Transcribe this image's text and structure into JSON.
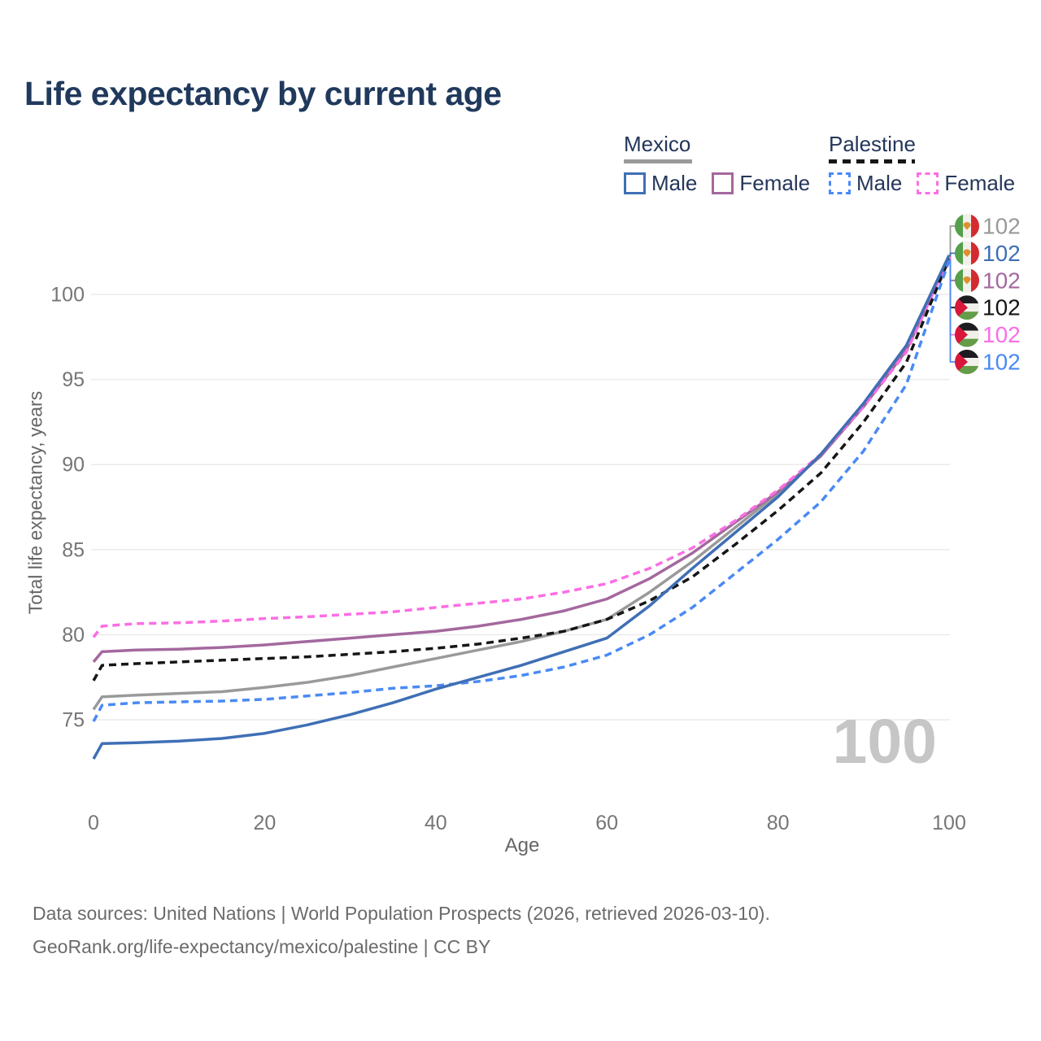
{
  "title": "Life expectancy by current age",
  "watermark": "100",
  "source": {
    "line1": "Data sources: United Nations | World Population Prospects (2026, retrieved 2026-03-10).",
    "line2": "GeoRank.org/life-expectancy/mexico/palestine | CC BY"
  },
  "legend": {
    "groups": [
      {
        "label": "Mexico",
        "line_style": "solid",
        "underline_color": "#9a9a9a",
        "items": [
          {
            "label": "Male",
            "color": "#3f6fb5"
          },
          {
            "label": "Female",
            "color": "#a4689e"
          }
        ]
      },
      {
        "label": "Palestine",
        "line_style": "dashed",
        "underline_color": "#161616",
        "items": [
          {
            "label": "Male",
            "color": "#4a8af4"
          },
          {
            "label": "Female",
            "color": "#fb6ee4"
          }
        ]
      }
    ]
  },
  "chart_data": {
    "type": "line",
    "title": "Life expectancy by current age",
    "xlabel": "Age",
    "ylabel": "Total life expectancy, years",
    "x_ticks": [
      0,
      20,
      40,
      60,
      80,
      100
    ],
    "y_ticks": [
      75,
      80,
      85,
      90,
      95,
      100
    ],
    "xlim": [
      0,
      100
    ],
    "ylim": [
      72,
      103
    ],
    "grid": "horizontal",
    "legend_position": "top-right",
    "x": [
      0,
      1,
      5,
      10,
      15,
      20,
      25,
      30,
      35,
      40,
      45,
      50,
      55,
      60,
      65,
      70,
      75,
      80,
      85,
      90,
      95,
      100
    ],
    "series": [
      {
        "key": "mexico-both",
        "name": "Mexico Both sexes",
        "country": "Mexico",
        "sex": "Both",
        "color": "#9a9a9a",
        "dash": false,
        "values": [
          75.6,
          76.35,
          76.45,
          76.55,
          76.65,
          76.9,
          77.2,
          77.6,
          78.1,
          78.6,
          79.1,
          79.6,
          80.2,
          80.9,
          82.5,
          84.3,
          86.3,
          88.3,
          90.5,
          93.5,
          96.8,
          102.25
        ]
      },
      {
        "key": "mexico-female",
        "name": "Mexico Female",
        "country": "Mexico",
        "sex": "Female",
        "color": "#a4689e",
        "dash": false,
        "values": [
          78.4,
          79.0,
          79.1,
          79.15,
          79.25,
          79.4,
          79.6,
          79.8,
          80.0,
          80.2,
          80.5,
          80.9,
          81.4,
          82.1,
          83.3,
          84.8,
          86.6,
          88.4,
          90.5,
          93.4,
          96.7,
          102.2
        ]
      },
      {
        "key": "palestine-female",
        "name": "Palestine Female",
        "country": "Palestine",
        "sex": "Female",
        "color": "#fb6ee4",
        "dash": true,
        "values": [
          79.85,
          80.5,
          80.65,
          80.7,
          80.8,
          80.95,
          81.05,
          81.2,
          81.35,
          81.6,
          81.85,
          82.1,
          82.5,
          83.0,
          83.9,
          85.1,
          86.7,
          88.5,
          90.6,
          93.4,
          96.6,
          102.15
        ]
      },
      {
        "key": "palestine-both",
        "name": "Palestine Both sexes",
        "country": "Palestine",
        "sex": "Both",
        "color": "#161616",
        "dash": true,
        "values": [
          77.3,
          78.2,
          78.3,
          78.4,
          78.5,
          78.6,
          78.7,
          78.85,
          79.0,
          79.2,
          79.45,
          79.8,
          80.2,
          80.9,
          82.0,
          83.4,
          85.3,
          87.3,
          89.5,
          92.5,
          96.0,
          102.1
        ]
      },
      {
        "key": "palestine-male",
        "name": "Palestine Male",
        "country": "Palestine",
        "sex": "Male",
        "color": "#4a8af4",
        "dash": true,
        "values": [
          74.9,
          75.85,
          76.0,
          76.05,
          76.1,
          76.2,
          76.4,
          76.6,
          76.85,
          77.0,
          77.25,
          77.6,
          78.1,
          78.8,
          80.0,
          81.6,
          83.6,
          85.6,
          87.8,
          90.8,
          94.7,
          102.0
        ]
      },
      {
        "key": "mexico-male",
        "name": "Mexico Male",
        "country": "Mexico",
        "sex": "Male",
        "color": "#3f6fb5",
        "dash": false,
        "values": [
          72.7,
          73.6,
          73.65,
          73.75,
          73.9,
          74.2,
          74.7,
          75.3,
          76.0,
          76.8,
          77.5,
          78.2,
          79.0,
          79.8,
          81.7,
          83.9,
          86.0,
          88.1,
          90.6,
          93.6,
          97.0,
          102.3
        ]
      }
    ],
    "end_labels": [
      {
        "flag": "mexico",
        "series": "mexico-both",
        "value": "102",
        "color": "#9a9a9a"
      },
      {
        "flag": "mexico",
        "series": "mexico-male",
        "value": "102",
        "color": "#3f6fb5"
      },
      {
        "flag": "mexico",
        "series": "mexico-female",
        "value": "102",
        "color": "#a4689e"
      },
      {
        "flag": "palestine",
        "series": "palestine-both",
        "value": "102",
        "color": "#161616"
      },
      {
        "flag": "palestine",
        "series": "palestine-female",
        "value": "102",
        "color": "#fb6ee4"
      },
      {
        "flag": "palestine",
        "series": "palestine-male",
        "value": "102",
        "color": "#4a8af4"
      }
    ]
  }
}
